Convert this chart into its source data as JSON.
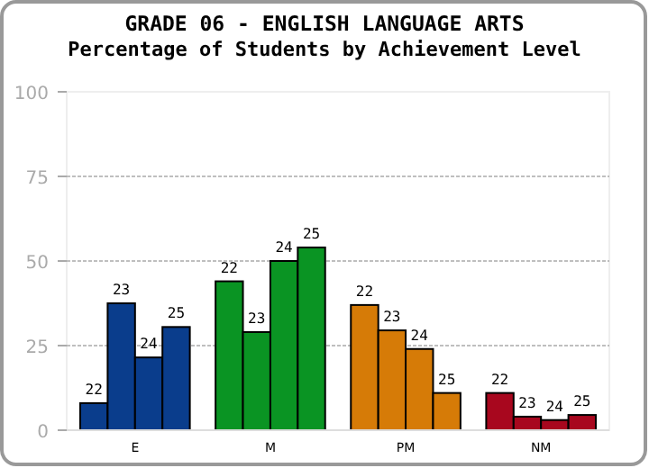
{
  "chart_data": {
    "type": "bar",
    "title": "GRADE 06 - ENGLISH LANGUAGE ARTS",
    "subtitle": "Percentage of Students by Achievement Level",
    "categories": [
      "E",
      "M",
      "PM",
      "NM"
    ],
    "series": [
      {
        "name": "22",
        "colors": [
          "#0a3d8c",
          "#0a9423",
          "#d67b07",
          "#a8071e"
        ],
        "values": [
          8,
          44,
          37,
          11
        ]
      },
      {
        "name": "23",
        "colors": [
          "#0a3d8c",
          "#0a9423",
          "#d67b07",
          "#a8071e"
        ],
        "values": [
          37.5,
          29,
          29.5,
          4
        ]
      },
      {
        "name": "24",
        "colors": [
          "#0a3d8c",
          "#0a9423",
          "#d67b07",
          "#a8071e"
        ],
        "values": [
          21.5,
          50,
          24,
          3
        ]
      },
      {
        "name": "25",
        "colors": [
          "#0a3d8c",
          "#0a9423",
          "#d67b07",
          "#a8071e"
        ],
        "values": [
          30.5,
          54,
          11,
          4.5
        ]
      }
    ],
    "ylim": [
      0,
      100
    ],
    "yticks": [
      0,
      25,
      50,
      75,
      100
    ],
    "grid": "y"
  }
}
